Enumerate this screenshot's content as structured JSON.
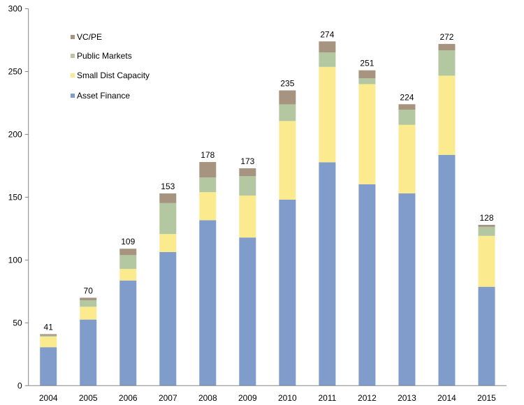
{
  "chart_data": {
    "type": "bar",
    "stacked": true,
    "title": "",
    "xlabel": "",
    "ylabel": "",
    "ylim": [
      0,
      300
    ],
    "yticks": [
      0,
      50,
      100,
      150,
      200,
      250,
      300
    ],
    "grid": false,
    "legend_position": "top-left",
    "categories": [
      "2004",
      "2005",
      "2006",
      "2007",
      "2008",
      "2009",
      "2010",
      "2011",
      "2012",
      "2013",
      "2014",
      "2015"
    ],
    "series": [
      {
        "name": "Asset Finance",
        "color": "#7f9cca",
        "values": [
          30.6,
          52.6,
          83.7,
          106.4,
          131.7,
          117.9,
          148.1,
          177.8,
          160.3,
          153.0,
          183.7,
          78.7
        ]
      },
      {
        "name": "Small Dist Capacity",
        "color": "#fbea8e",
        "values": [
          8.4,
          10.2,
          9.2,
          14.3,
          22.3,
          33.4,
          62.5,
          75.9,
          79.7,
          54.6,
          63.0,
          40.5
        ]
      },
      {
        "name": "Public Markets",
        "color": "#b3c7a0",
        "values": [
          0.8,
          5.2,
          11.0,
          24.6,
          11.7,
          15.4,
          13.3,
          11.5,
          4.6,
          12.0,
          20.1,
          7.2
        ]
      },
      {
        "name": "VC/PE",
        "color": "#a69481",
        "values": [
          1.2,
          2.0,
          5.1,
          7.7,
          12.3,
          6.3,
          11.1,
          8.8,
          6.4,
          4.4,
          5.2,
          1.6
        ]
      }
    ],
    "totals": [
      "41",
      "70",
      "109",
      "153",
      "178",
      "173",
      "235",
      "274",
      "251",
      "224",
      "272",
      "128"
    ],
    "legend_order": [
      "VC/PE",
      "Public Markets",
      "Small Dist Capacity",
      "Asset Finance"
    ]
  }
}
